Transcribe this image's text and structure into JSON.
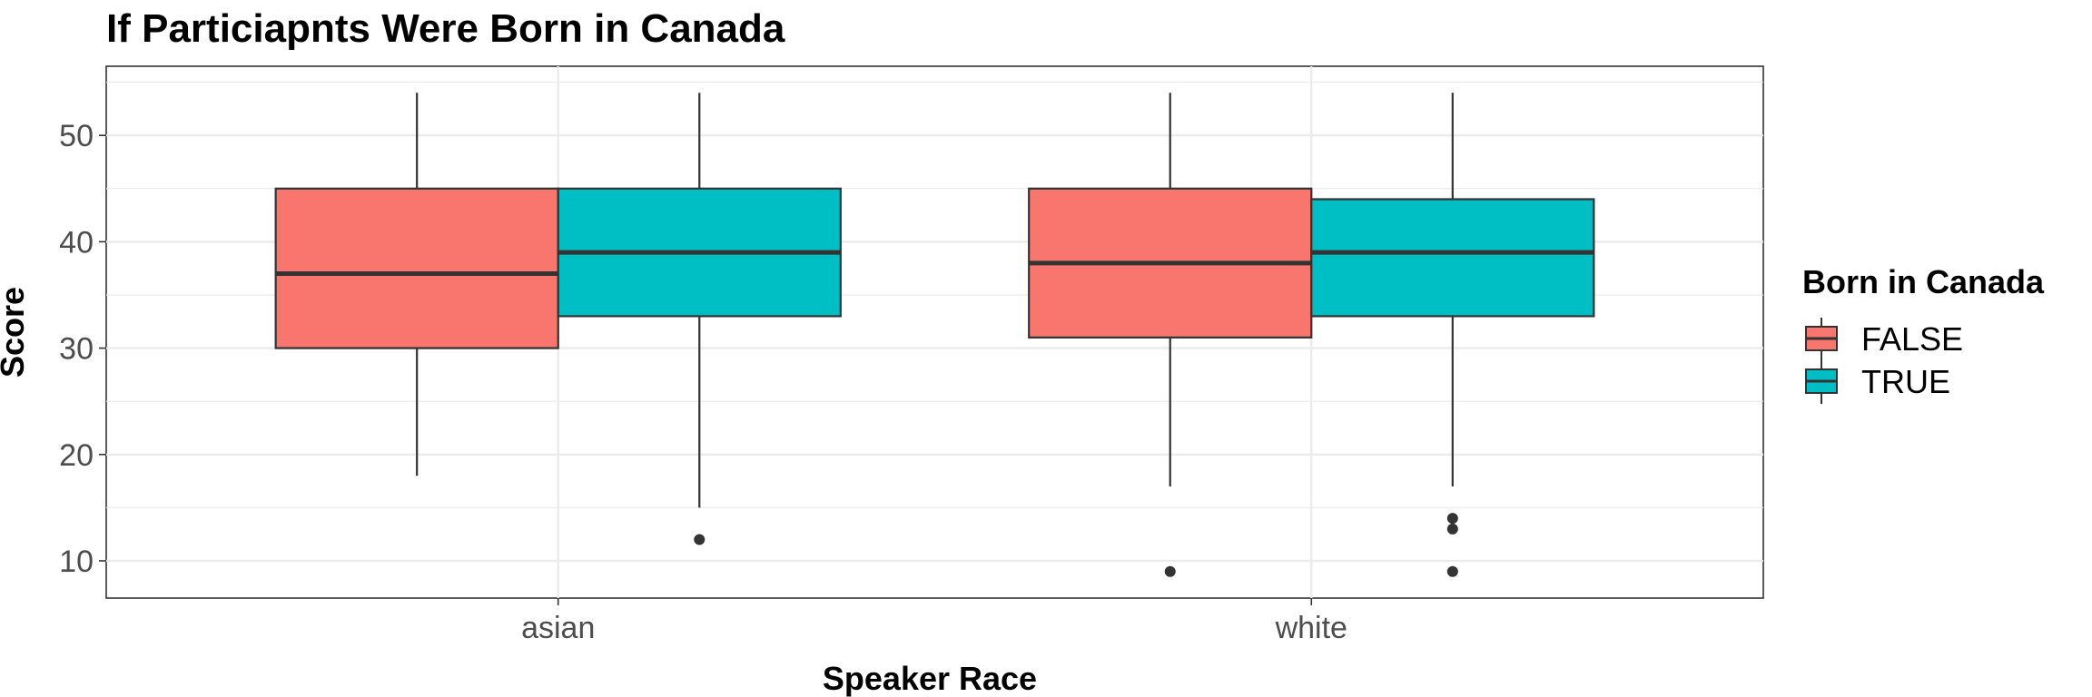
{
  "chart_data": {
    "type": "boxplot",
    "title": "If Particiapnts Were Born in Canada",
    "xlabel": "Speaker Race",
    "ylabel": "Score",
    "categories": [
      "asian",
      "white"
    ],
    "ylim": [
      6.5,
      56.5
    ],
    "yticks": [
      10,
      20,
      30,
      40,
      50
    ],
    "grid": true,
    "legend": {
      "title": "Born in Canada",
      "position": "right",
      "entries": [
        "FALSE",
        "TRUE"
      ]
    },
    "series": [
      {
        "name": "FALSE",
        "color": "#F8766D",
        "boxes": [
          {
            "category": "asian",
            "whisker_low": 18,
            "q1": 30,
            "median": 37,
            "q3": 45,
            "whisker_high": 54,
            "outliers": []
          },
          {
            "category": "white",
            "whisker_low": 17,
            "q1": 31,
            "median": 38,
            "q3": 45,
            "whisker_high": 54,
            "outliers": [
              9
            ]
          }
        ]
      },
      {
        "name": "TRUE",
        "color": "#00BFC4",
        "boxes": [
          {
            "category": "asian",
            "whisker_low": 15,
            "q1": 33,
            "median": 39,
            "q3": 45,
            "whisker_high": 54,
            "outliers": [
              12
            ]
          },
          {
            "category": "white",
            "whisker_low": 17,
            "q1": 33,
            "median": 39,
            "q3": 44,
            "whisker_high": 54,
            "outliers": [
              9,
              13,
              14
            ]
          }
        ]
      }
    ]
  }
}
